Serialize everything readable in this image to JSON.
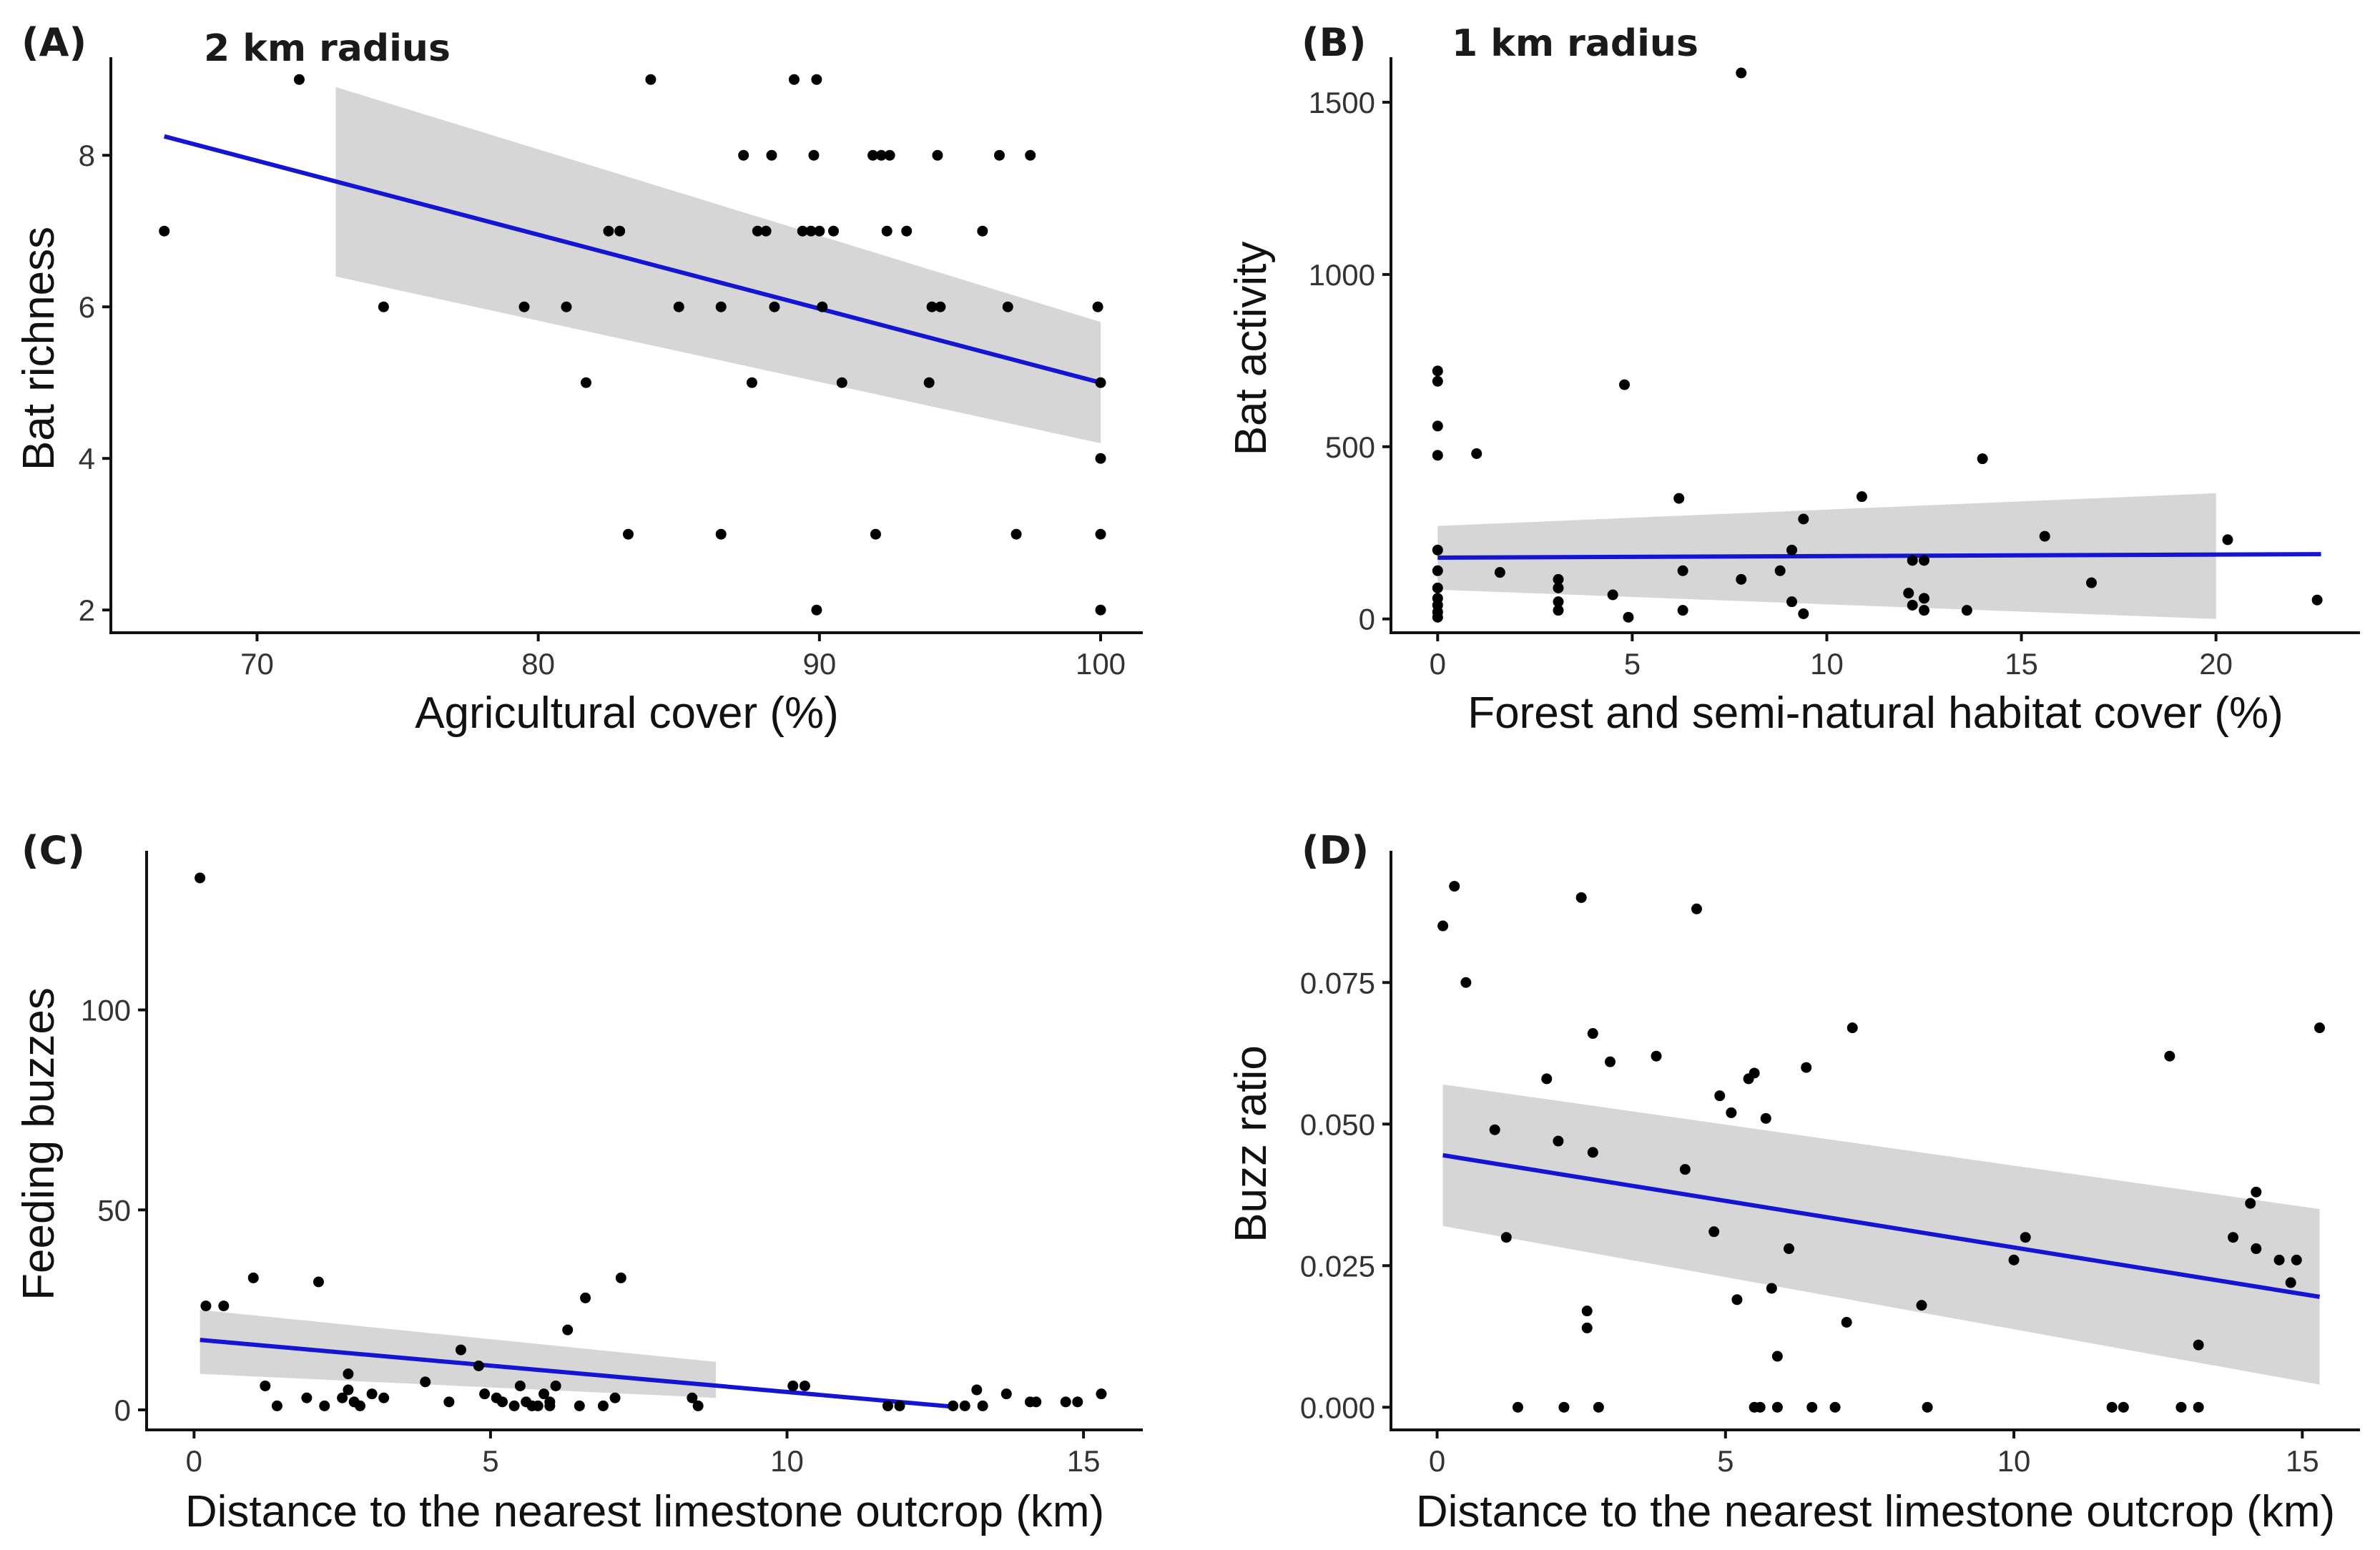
{
  "figure_colors": {
    "points": "#000000",
    "fit_line": "#1414d2",
    "ci_band": "#c8c8c8"
  },
  "chart_data": [
    {
      "id": "A",
      "type": "scatter",
      "panel_label": "(A)",
      "annotation": "2 km radius",
      "xlabel": "Agricultural cover (%)",
      "ylabel": "Bat richness",
      "xlim": [
        64.8,
        101.5
      ],
      "ylim": [
        1.7,
        9.2
      ],
      "xticks": [
        70,
        80,
        90,
        100
      ],
      "yticks": [
        2,
        4,
        6,
        8
      ],
      "fit": {
        "x": [
          66.7,
          100
        ],
        "y": [
          8.25,
          5.0
        ]
      },
      "ci": {
        "x": [
          72.8,
          100
        ],
        "upper": [
          8.9,
          5.8
        ],
        "lower": [
          6.4,
          4.2
        ]
      },
      "points": [
        [
          66.7,
          7
        ],
        [
          71.5,
          9
        ],
        [
          74.5,
          6
        ],
        [
          79.5,
          6
        ],
        [
          81,
          6
        ],
        [
          81.7,
          5
        ],
        [
          82.5,
          7
        ],
        [
          82.9,
          7
        ],
        [
          83.2,
          3
        ],
        [
          84,
          9
        ],
        [
          85,
          6
        ],
        [
          86.5,
          3
        ],
        [
          86.5,
          6
        ],
        [
          87.3,
          8
        ],
        [
          87.6,
          5
        ],
        [
          87.8,
          7
        ],
        [
          88.1,
          7
        ],
        [
          88.3,
          8
        ],
        [
          88.4,
          6
        ],
        [
          89.1,
          9
        ],
        [
          89.4,
          7
        ],
        [
          89.7,
          7
        ],
        [
          89.8,
          8
        ],
        [
          89.9,
          2
        ],
        [
          89.9,
          9
        ],
        [
          90,
          7
        ],
        [
          90.1,
          6
        ],
        [
          90.5,
          7
        ],
        [
          90.8,
          5
        ],
        [
          91.9,
          8
        ],
        [
          92,
          3
        ],
        [
          92.2,
          8
        ],
        [
          92.4,
          7
        ],
        [
          92.5,
          8
        ],
        [
          93.1,
          7
        ],
        [
          93.9,
          5
        ],
        [
          94,
          6
        ],
        [
          94.2,
          8
        ],
        [
          94.3,
          6
        ],
        [
          95.8,
          7
        ],
        [
          96.4,
          8
        ],
        [
          96.7,
          6
        ],
        [
          97,
          3
        ],
        [
          97.5,
          8
        ],
        [
          99.9,
          6
        ],
        [
          100,
          5
        ],
        [
          100,
          4
        ],
        [
          100,
          3
        ],
        [
          100,
          2
        ]
      ]
    },
    {
      "id": "B",
      "type": "scatter",
      "panel_label": "(B)",
      "annotation": "1 km radius",
      "xlabel": "Forest and semi-natural habitat cover (%)",
      "ylabel": "Bat activity",
      "xlim": [
        -1.2,
        23.7
      ],
      "ylim": [
        -40,
        1610
      ],
      "xticks": [
        0,
        5,
        10,
        15,
        20
      ],
      "yticks": [
        0,
        500,
        1000,
        1500
      ],
      "fit": {
        "x": [
          0,
          22.7
        ],
        "y": [
          178,
          188
        ]
      },
      "ci": {
        "x": [
          0,
          20
        ],
        "upper": [
          270,
          365
        ],
        "lower": [
          85,
          0
        ]
      },
      "points": [
        [
          0,
          720
        ],
        [
          0,
          690
        ],
        [
          0,
          560
        ],
        [
          0,
          475
        ],
        [
          0,
          200
        ],
        [
          0,
          140
        ],
        [
          0,
          90
        ],
        [
          0,
          60
        ],
        [
          0,
          40
        ],
        [
          0,
          20
        ],
        [
          0,
          5
        ],
        [
          1,
          480
        ],
        [
          1.6,
          135
        ],
        [
          3.1,
          115
        ],
        [
          3.1,
          90
        ],
        [
          3.1,
          50
        ],
        [
          3.1,
          25
        ],
        [
          4.5,
          70
        ],
        [
          4.8,
          680
        ],
        [
          4.9,
          5
        ],
        [
          6.2,
          350
        ],
        [
          6.3,
          140
        ],
        [
          6.3,
          25
        ],
        [
          7.8,
          1585
        ],
        [
          7.8,
          115
        ],
        [
          8.8,
          140
        ],
        [
          9.1,
          200
        ],
        [
          9.1,
          50
        ],
        [
          9.4,
          290
        ],
        [
          9.4,
          15
        ],
        [
          10.9,
          355
        ],
        [
          12.1,
          75
        ],
        [
          12.2,
          170
        ],
        [
          12.2,
          40
        ],
        [
          12.5,
          170
        ],
        [
          12.5,
          60
        ],
        [
          12.5,
          25
        ],
        [
          13.6,
          25
        ],
        [
          14,
          465
        ],
        [
          15.6,
          240
        ],
        [
          16.8,
          105
        ],
        [
          20.3,
          230
        ],
        [
          22.6,
          55
        ]
      ]
    },
    {
      "id": "C",
      "type": "scatter",
      "panel_label": "(C)",
      "annotation": "",
      "xlabel": "Distance to the nearest limestone outcrop (km)",
      "ylabel": "Feeding buzzes",
      "xlim": [
        -0.8,
        16.0
      ],
      "ylim": [
        -5,
        138
      ],
      "xticks": [
        0,
        5,
        10,
        15
      ],
      "yticks": [
        0,
        50,
        100
      ],
      "fit": {
        "x": [
          0.1,
          12.8
        ],
        "y": [
          17.5,
          0.8
        ]
      },
      "ci": {
        "x": [
          0.1,
          8.8
        ],
        "upper": [
          25,
          12
        ],
        "lower": [
          9,
          3
        ]
      },
      "points": [
        [
          0.1,
          133
        ],
        [
          0.2,
          26
        ],
        [
          0.5,
          26
        ],
        [
          1.0,
          33
        ],
        [
          1.2,
          6
        ],
        [
          1.4,
          1
        ],
        [
          1.9,
          3
        ],
        [
          2.1,
          32
        ],
        [
          2.2,
          1
        ],
        [
          2.5,
          3
        ],
        [
          2.6,
          5
        ],
        [
          2.6,
          9
        ],
        [
          2.7,
          2
        ],
        [
          2.8,
          1
        ],
        [
          3.0,
          4
        ],
        [
          3.2,
          3
        ],
        [
          3.9,
          7
        ],
        [
          4.3,
          2
        ],
        [
          4.5,
          15
        ],
        [
          4.8,
          11
        ],
        [
          4.9,
          4
        ],
        [
          5.1,
          3
        ],
        [
          5.2,
          2
        ],
        [
          5.4,
          1
        ],
        [
          5.5,
          6
        ],
        [
          5.6,
          2
        ],
        [
          5.7,
          1
        ],
        [
          5.8,
          1
        ],
        [
          5.9,
          4
        ],
        [
          6.0,
          1
        ],
        [
          6.0,
          2
        ],
        [
          6.1,
          6
        ],
        [
          6.3,
          20
        ],
        [
          6.5,
          1
        ],
        [
          6.6,
          28
        ],
        [
          6.9,
          1
        ],
        [
          7.1,
          3
        ],
        [
          7.2,
          33
        ],
        [
          8.4,
          3
        ],
        [
          8.5,
          1
        ],
        [
          10.1,
          6
        ],
        [
          10.3,
          6
        ],
        [
          11.7,
          1
        ],
        [
          11.9,
          1
        ],
        [
          12.8,
          1
        ],
        [
          13.0,
          1
        ],
        [
          13.2,
          5
        ],
        [
          13.3,
          1
        ],
        [
          13.7,
          4
        ],
        [
          14.1,
          2
        ],
        [
          14.2,
          2
        ],
        [
          14.7,
          2
        ],
        [
          14.9,
          2
        ],
        [
          15.3,
          4
        ]
      ]
    },
    {
      "id": "D",
      "type": "scatter",
      "panel_label": "(D)",
      "annotation": "",
      "xlabel": "Distance to the nearest limestone outcrop (km)",
      "ylabel": "Buzz ratio",
      "xlim": [
        -0.8,
        16.0
      ],
      "ylim": [
        -0.004,
        0.097
      ],
      "xticks": [
        0,
        5,
        10,
        15
      ],
      "yticks": [
        0.0,
        0.025,
        0.05,
        0.075
      ],
      "ytick_labels": [
        "0.000",
        "0.025",
        "0.050",
        "0.075"
      ],
      "fit": {
        "x": [
          0.1,
          15.3
        ],
        "y": [
          0.0445,
          0.0195
        ]
      },
      "ci": {
        "x": [
          0.1,
          15.3
        ],
        "upper": [
          0.057,
          0.035
        ],
        "lower": [
          0.032,
          0.004
        ]
      },
      "points": [
        [
          0.1,
          0.085
        ],
        [
          0.3,
          0.092
        ],
        [
          0.5,
          0.075
        ],
        [
          1.0,
          0.049
        ],
        [
          1.2,
          0.03
        ],
        [
          1.4,
          0.0
        ],
        [
          1.9,
          0.058
        ],
        [
          2.1,
          0.047
        ],
        [
          2.2,
          0.0
        ],
        [
          2.5,
          0.09
        ],
        [
          2.6,
          0.017
        ],
        [
          2.6,
          0.014
        ],
        [
          2.7,
          0.066
        ],
        [
          2.7,
          0.045
        ],
        [
          2.8,
          0.0
        ],
        [
          3.0,
          0.061
        ],
        [
          3.8,
          0.062
        ],
        [
          4.3,
          0.042
        ],
        [
          4.5,
          0.088
        ],
        [
          4.8,
          0.031
        ],
        [
          4.9,
          0.055
        ],
        [
          5.1,
          0.052
        ],
        [
          5.2,
          0.019
        ],
        [
          5.4,
          0.058
        ],
        [
          5.5,
          0.059
        ],
        [
          5.5,
          0.0
        ],
        [
          5.6,
          0.0
        ],
        [
          5.7,
          0.051
        ],
        [
          5.8,
          0.021
        ],
        [
          5.9,
          0.0
        ],
        [
          5.9,
          0.009
        ],
        [
          6.1,
          0.028
        ],
        [
          6.4,
          0.06
        ],
        [
          6.5,
          0.0
        ],
        [
          6.9,
          0.0
        ],
        [
          7.1,
          0.015
        ],
        [
          7.2,
          0.067
        ],
        [
          8.4,
          0.018
        ],
        [
          8.5,
          0.0
        ],
        [
          10.0,
          0.026
        ],
        [
          10.2,
          0.03
        ],
        [
          11.7,
          0.0
        ],
        [
          11.9,
          0.0
        ],
        [
          12.7,
          0.062
        ],
        [
          12.9,
          0.0
        ],
        [
          13.2,
          0.0
        ],
        [
          13.2,
          0.011
        ],
        [
          13.8,
          0.03
        ],
        [
          14.1,
          0.036
        ],
        [
          14.2,
          0.038
        ],
        [
          14.2,
          0.028
        ],
        [
          14.6,
          0.026
        ],
        [
          14.9,
          0.026
        ],
        [
          15.3,
          0.067
        ],
        [
          14.8,
          0.022
        ]
      ]
    }
  ]
}
